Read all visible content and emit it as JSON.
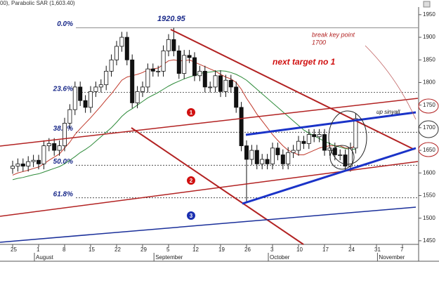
{
  "chart_data": {
    "type": "candlestick",
    "header": "00), Parabolic SAR (1,603.40)",
    "categories": [
      "25",
      null,
      null,
      null,
      null,
      "1",
      null,
      null,
      null,
      null,
      "8",
      null,
      null,
      null,
      null,
      "15",
      null,
      null,
      null,
      null,
      "22",
      null,
      null,
      null,
      null,
      "29",
      null,
      null,
      null,
      null,
      "5",
      null,
      null,
      null,
      null,
      "12",
      null,
      null,
      null,
      null,
      "19",
      null,
      null,
      null,
      null,
      "26",
      null,
      null,
      null,
      null,
      "3",
      null,
      null,
      null,
      null,
      "10",
      null,
      null,
      null,
      null,
      "17",
      null,
      null,
      null,
      null,
      "24",
      null,
      null,
      null,
      null,
      "31",
      null,
      null,
      null,
      null,
      "7",
      null,
      null
    ],
    "months": [
      {
        "label": "August",
        "start": 5
      },
      {
        "label": "September",
        "start": 28
      },
      {
        "label": "October",
        "start": 50
      },
      {
        "label": "November",
        "start": 71
      }
    ],
    "open": [
      1610,
      1615,
      1620,
      1615,
      1625,
      1628,
      1620,
      1660,
      1665,
      1650,
      1660,
      1710,
      1740,
      1790,
      1760,
      1745,
      1780,
      1790,
      1795,
      1825,
      1850,
      1880,
      1900,
      1850,
      1755,
      1780,
      1790,
      1830,
      1825,
      1825,
      1870,
      1895,
      1870,
      1820,
      1860,
      1855,
      1815,
      1825,
      1790,
      1790,
      1815,
      1780,
      1805,
      1790,
      1745,
      1660,
      1630,
      1650,
      1620,
      1630,
      1620,
      1655,
      1640,
      1620,
      1645,
      1650,
      1670,
      1665,
      1685,
      1680,
      1685,
      1650,
      1655,
      1640,
      1640,
      1615,
      1655,
      null,
      null,
      null,
      null,
      null,
      null,
      null,
      null,
      null,
      null,
      null
    ],
    "high": [
      1627,
      1632,
      1632,
      1637,
      1640,
      1640,
      1672,
      1677,
      1677,
      1672,
      1722,
      1752,
      1802,
      1802,
      1772,
      1792,
      1802,
      1807,
      1837,
      1862,
      1892,
      1912,
      1912,
      1862,
      1792,
      1802,
      1842,
      1842,
      1837,
      1882,
      1907,
      1921,
      1882,
      1872,
      1872,
      1867,
      1837,
      1837,
      1802,
      1827,
      1827,
      1817,
      1817,
      1802,
      1757,
      1672,
      1662,
      1662,
      1642,
      1642,
      1667,
      1667,
      1652,
      1657,
      1662,
      1682,
      1682,
      1697,
      1697,
      1697,
      1697,
      1667,
      1667,
      1652,
      1652,
      1667,
      1732,
      null,
      null,
      null,
      null,
      null,
      null,
      null,
      null,
      null,
      null,
      null
    ],
    "low": [
      1598,
      1603,
      1603,
      1603,
      1613,
      1608,
      1608,
      1648,
      1638,
      1638,
      1648,
      1698,
      1728,
      1748,
      1733,
      1733,
      1768,
      1778,
      1783,
      1813,
      1838,
      1868,
      1838,
      1743,
      1743,
      1768,
      1778,
      1813,
      1813,
      1813,
      1858,
      1858,
      1808,
      1808,
      1843,
      1803,
      1803,
      1778,
      1778,
      1778,
      1768,
      1768,
      1778,
      1733,
      1648,
      1535,
      1618,
      1608,
      1608,
      1608,
      1608,
      1628,
      1608,
      1608,
      1633,
      1638,
      1653,
      1653,
      1668,
      1668,
      1638,
      1638,
      1628,
      1628,
      1603,
      1603,
      1643,
      null,
      null,
      null,
      null,
      null,
      null,
      null,
      null,
      null,
      null,
      null
    ],
    "close": [
      1615,
      1620,
      1615,
      1625,
      1628,
      1620,
      1660,
      1665,
      1650,
      1660,
      1710,
      1740,
      1790,
      1760,
      1745,
      1780,
      1790,
      1795,
      1825,
      1850,
      1880,
      1900,
      1850,
      1755,
      1780,
      1790,
      1830,
      1825,
      1825,
      1870,
      1895,
      1870,
      1820,
      1860,
      1855,
      1815,
      1825,
      1790,
      1790,
      1815,
      1780,
      1805,
      1790,
      1745,
      1660,
      1630,
      1650,
      1620,
      1630,
      1620,
      1655,
      1640,
      1620,
      1645,
      1650,
      1670,
      1665,
      1685,
      1680,
      1685,
      1650,
      1655,
      1640,
      1640,
      1615,
      1655,
      1720,
      null,
      null,
      null,
      null,
      null,
      null,
      null,
      null,
      null,
      null,
      null
    ],
    "series": [
      {
        "color": "#c0392b",
        "values": [
          1595,
          1600,
          1603,
          1606,
          1610,
          1613,
          1620,
          1628,
          1635,
          1642,
          1655,
          1668,
          1685,
          1698,
          1710,
          1722,
          1735,
          1748,
          1762,
          1775,
          1790,
          1805,
          1812,
          1815,
          1818,
          1822,
          1828,
          1830,
          1832,
          1840,
          1848,
          1850,
          1848,
          1848,
          1850,
          1845,
          1840,
          1835,
          1830,
          1825,
          1818,
          1812,
          1808,
          1800,
          1785,
          1765,
          1748,
          1730,
          1715,
          1700,
          1685,
          1672,
          1660,
          1650,
          1645,
          1640,
          1640,
          1645,
          1650,
          1655,
          1658,
          1660,
          1660,
          1660,
          1655,
          1655,
          1660,
          null,
          null,
          null,
          null,
          null,
          null,
          null,
          null,
          null,
          null,
          null
        ]
      },
      {
        "color": "#2e8b3a",
        "values": [
          1585,
          1588,
          1590,
          1593,
          1596,
          1598,
          1602,
          1606,
          1610,
          1614,
          1620,
          1628,
          1636,
          1645,
          1652,
          1660,
          1670,
          1680,
          1690,
          1700,
          1712,
          1725,
          1735,
          1742,
          1750,
          1758,
          1766,
          1772,
          1778,
          1785,
          1792,
          1798,
          1803,
          1808,
          1812,
          1816,
          1820,
          1822,
          1823,
          1825,
          1826,
          1825,
          1822,
          1818,
          1812,
          1805,
          1795,
          1785,
          1775,
          1765,
          1755,
          1745,
          1735,
          1725,
          1715,
          1705,
          1695,
          1688,
          1682,
          1676,
          1670,
          1665,
          1660,
          1657,
          1654,
          1652,
          1652,
          null,
          null,
          null,
          null,
          null,
          null,
          null,
          null,
          null,
          null,
          null
        ]
      }
    ],
    "ylim": [
      1442,
      1970
    ],
    "yticks": [
      1450,
      1500,
      1550,
      1600,
      1650,
      1700,
      1750,
      1800,
      1850,
      1900,
      1950
    ],
    "fib_levels": [
      {
        "value": 1921,
        "label": "0.0%"
      },
      {
        "value": 1778,
        "label": "23.6%"
      },
      {
        "value": 1690,
        "label": "38.2%"
      },
      {
        "value": 1617,
        "label": "50.0%"
      },
      {
        "value": 1545,
        "label": "61.8%"
      }
    ],
    "annotations": {
      "peak": "1920.95",
      "target": "next target no 1",
      "break_line1": "break key point",
      "break_line2": "1700",
      "signal": "up sinyall",
      "marker1": "1",
      "marker2": "2",
      "marker3": "3"
    }
  }
}
